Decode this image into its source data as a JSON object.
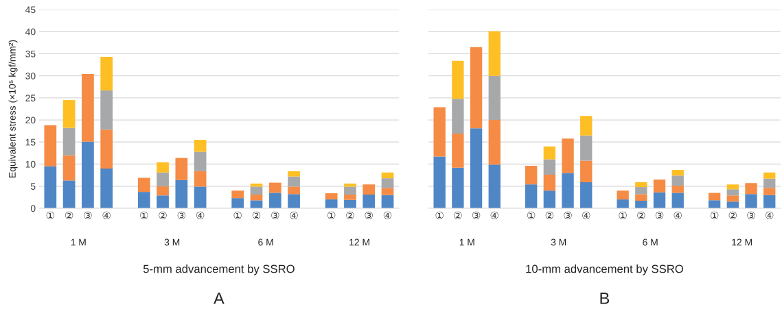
{
  "chart_data": [
    {
      "type": "bar",
      "stacked": true,
      "ylabel": "Equivalent stress (×10⁵ kgf/mm²)",
      "xlabel": "5-mm advancement by SSRO",
      "categories": [
        "①",
        "②",
        "③",
        "④",
        null,
        "①",
        "②",
        "③",
        "④",
        null,
        "①",
        "②",
        "③",
        "④",
        null,
        "①",
        "②",
        "③",
        "④"
      ],
      "series": [
        {
          "color": "#4e86c6",
          "values": [
            9.5,
            6.3,
            15.1,
            9.0,
            null,
            3.7,
            2.9,
            6.4,
            4.9,
            null,
            2.3,
            1.8,
            3.5,
            3.2,
            null,
            2.0,
            1.9,
            3.1,
            3.0
          ]
        },
        {
          "color": "#f58b45",
          "values": [
            9.3,
            5.7,
            15.3,
            8.8,
            null,
            3.2,
            2.1,
            5.0,
            3.5,
            null,
            1.7,
            1.3,
            2.3,
            1.7,
            null,
            1.4,
            1.2,
            2.3,
            1.6
          ]
        },
        {
          "color": "#a7a8aa",
          "values": [
            null,
            6.2,
            null,
            8.9,
            null,
            null,
            3.1,
            null,
            4.4,
            null,
            null,
            1.8,
            null,
            2.3,
            null,
            null,
            1.8,
            null,
            2.2
          ]
        },
        {
          "color": "#fdbf24",
          "values": [
            null,
            6.3,
            null,
            7.6,
            null,
            null,
            2.3,
            null,
            2.7,
            null,
            null,
            0.7,
            null,
            1.2,
            null,
            null,
            0.7,
            null,
            1.3
          ]
        }
      ],
      "ylim": [
        0,
        45
      ],
      "yticks": [
        0,
        5,
        10,
        15,
        20,
        25,
        30,
        35,
        40,
        45
      ],
      "grid": "y",
      "annotations": [
        "1 M",
        "3 M",
        "6 M",
        "12 M",
        "A"
      ]
    },
    {
      "type": "bar",
      "stacked": true,
      "xlabel": "10-mm advancement by SSRO",
      "tick_labels": "x",
      "categories": [
        "①",
        "②",
        "③",
        "④",
        null,
        "①",
        "②",
        "③",
        "④",
        null,
        "①",
        "②",
        "③",
        "④",
        null,
        "①",
        "②",
        "③",
        "④"
      ],
      "series": [
        {
          "color": "#4e86c6",
          "values": [
            11.7,
            9.2,
            18.1,
            9.9,
            null,
            5.4,
            4.0,
            8.0,
            5.9,
            null,
            2.0,
            1.7,
            3.6,
            3.5,
            null,
            1.8,
            1.5,
            3.2,
            3.0
          ]
        },
        {
          "color": "#f58b45",
          "values": [
            11.2,
            7.7,
            18.4,
            10.1,
            null,
            4.2,
            3.6,
            7.8,
            4.9,
            null,
            2.0,
            1.5,
            2.9,
            1.6,
            null,
            1.7,
            1.4,
            2.5,
            1.6
          ]
        },
        {
          "color": "#a7a8aa",
          "values": [
            null,
            7.9,
            null,
            10.0,
            null,
            null,
            3.5,
            null,
            5.7,
            null,
            null,
            1.6,
            null,
            2.3,
            null,
            null,
            1.4,
            null,
            2.1
          ]
        },
        {
          "color": "#fdbf24",
          "values": [
            null,
            8.6,
            null,
            10.1,
            null,
            null,
            2.9,
            null,
            4.4,
            null,
            null,
            1.1,
            null,
            1.3,
            null,
            null,
            1.1,
            null,
            1.4
          ]
        }
      ],
      "ylim": [
        0,
        45
      ],
      "yticks": [
        0,
        5,
        10,
        15,
        20,
        25,
        30,
        35,
        40,
        45
      ],
      "grid": "y",
      "annotations": [
        "1 M",
        "3 M",
        "6 M",
        "12 M",
        "B"
      ]
    }
  ]
}
